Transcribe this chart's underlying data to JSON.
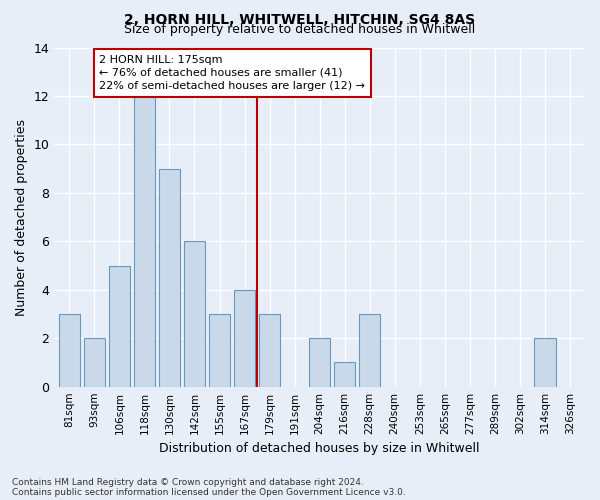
{
  "title": "2, HORN HILL, WHITWELL, HITCHIN, SG4 8AS",
  "subtitle": "Size of property relative to detached houses in Whitwell",
  "xlabel": "Distribution of detached houses by size in Whitwell",
  "ylabel": "Number of detached properties",
  "categories": [
    "81sqm",
    "93sqm",
    "106sqm",
    "118sqm",
    "130sqm",
    "142sqm",
    "155sqm",
    "167sqm",
    "179sqm",
    "191sqm",
    "204sqm",
    "216sqm",
    "228sqm",
    "240sqm",
    "253sqm",
    "265sqm",
    "277sqm",
    "289sqm",
    "302sqm",
    "314sqm",
    "326sqm"
  ],
  "values": [
    3,
    2,
    5,
    12,
    9,
    6,
    3,
    4,
    3,
    0,
    2,
    1,
    3,
    0,
    0,
    0,
    0,
    0,
    0,
    2,
    0
  ],
  "bar_color": "#c9d9ea",
  "bar_edge_color": "#6699bb",
  "vline_color": "#bb0000",
  "vline_x_index": 8,
  "annotation_text": "2 HORN HILL: 175sqm\n← 76% of detached houses are smaller (41)\n22% of semi-detached houses are larger (12) →",
  "annotation_box_color": "#ffffff",
  "annotation_box_edge": "#bb0000",
  "ylim": [
    0,
    14
  ],
  "yticks": [
    0,
    2,
    4,
    6,
    8,
    10,
    12,
    14
  ],
  "background_color": "#e8eef8",
  "grid_color": "#ffffff",
  "footer_line1": "Contains HM Land Registry data © Crown copyright and database right 2024.",
  "footer_line2": "Contains public sector information licensed under the Open Government Licence v3.0."
}
